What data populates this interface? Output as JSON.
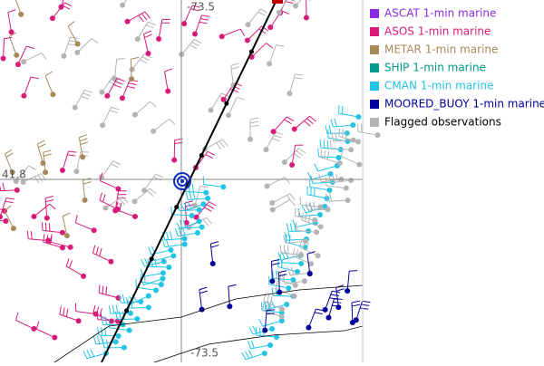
{
  "map": {
    "grid_labels": {
      "top_lon": "-73.5",
      "left_lat": "41.8",
      "bottom_lon": "-73.5"
    },
    "legend": [
      {
        "label": "ASCAT 1-min marine",
        "color": "#8a2be2"
      },
      {
        "label": "ASOS 1-min marine",
        "color": "#d81b7a"
      },
      {
        "label": "METAR 1-min marine",
        "color": "#a88a5a"
      },
      {
        "label": "SHIP 1-min marine",
        "color": "#00998a"
      },
      {
        "label": "CMAN 1-min marine",
        "color": "#22c4e6"
      },
      {
        "label": "MOORED_BUOY 1-min marine",
        "color": "#00009a"
      },
      {
        "label": "Flagged observations",
        "color": "#b4b4b4"
      }
    ]
  }
}
